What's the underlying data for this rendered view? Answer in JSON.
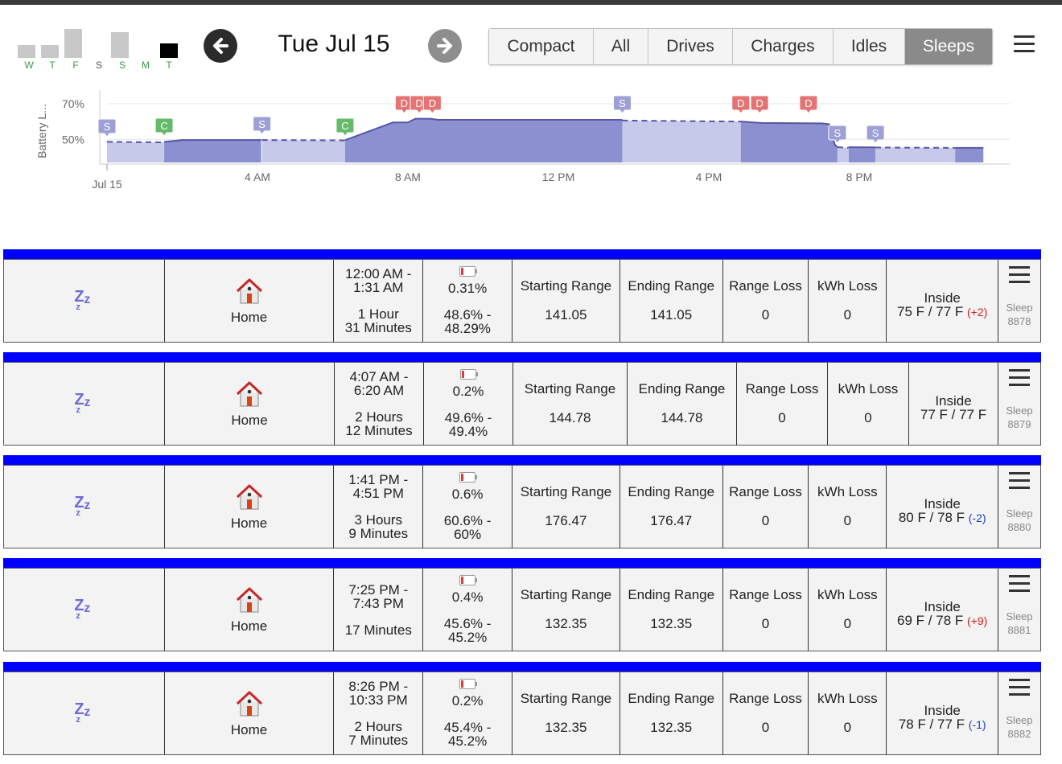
{
  "header": {
    "date_title": "Tue Jul 15",
    "week": [
      {
        "label": "W",
        "level": 0.45,
        "has_events": true
      },
      {
        "label": "T",
        "level": 0.45,
        "has_events": true
      },
      {
        "label": "F",
        "level": 1.0,
        "has_events": true
      },
      {
        "label": "S",
        "level": 0,
        "has_events": false
      },
      {
        "label": "S",
        "level": 0.9,
        "has_events": true
      },
      {
        "label": "M",
        "level": 0,
        "has_events": true
      },
      {
        "label": "T",
        "level": 0.55,
        "has_events": true,
        "today": true
      }
    ],
    "filters": [
      {
        "label": "Compact",
        "active": false
      },
      {
        "label": "All",
        "active": false
      },
      {
        "label": "Drives",
        "active": false
      },
      {
        "label": "Charges",
        "active": false
      },
      {
        "label": "Idles",
        "active": false
      },
      {
        "label": "Sleeps",
        "active": true
      }
    ],
    "icons": {
      "prev": "arrow-left-icon",
      "next": "arrow-right-icon",
      "menu": "hamburger-icon"
    }
  },
  "chart_data": {
    "type": "area",
    "ylabel": "Battery L...",
    "ytick_labels": [
      "70%",
      "50%"
    ],
    "yticks": [
      70,
      50
    ],
    "ylim": [
      37,
      75
    ],
    "xlim": [
      0,
      24
    ],
    "xtick_labels": [
      "Jul 15",
      "4 AM",
      "8 AM",
      "12 PM",
      "4 PM",
      "8 PM"
    ],
    "xticks": [
      0,
      4,
      8,
      12,
      16,
      20
    ],
    "colors": {
      "drive_fill": "#8c8fd0",
      "sleep_fill": "#c7c9eb",
      "line": "#5457a8",
      "drive_marker": "#e57373",
      "charge_marker": "#66bb6a",
      "sleep_marker": "#9da0d6"
    },
    "series": [
      {
        "segments": [
          {
            "kind": "sleep",
            "points": [
              [
                0,
                48.6
              ],
              [
                1.52,
                48.3
              ]
            ]
          },
          {
            "kind": "other",
            "points": [
              [
                1.52,
                48.6
              ],
              [
                2,
                49.6
              ],
              [
                4.1,
                49.6
              ]
            ]
          },
          {
            "kind": "sleep",
            "points": [
              [
                4.12,
                49.6
              ],
              [
                6.33,
                49.4
              ]
            ]
          },
          {
            "kind": "other",
            "points": [
              [
                6.33,
                49.5
              ],
              [
                7.6,
                59.5
              ],
              [
                8.0,
                59.5
              ],
              [
                8.2,
                61.6
              ],
              [
                8.6,
                61.6
              ],
              [
                8.8,
                61.0
              ],
              [
                13.7,
                61.0
              ]
            ]
          },
          {
            "kind": "sleep",
            "points": [
              [
                13.7,
                60.6
              ],
              [
                16.85,
                60.0
              ]
            ]
          },
          {
            "kind": "other",
            "points": [
              [
                16.85,
                60.0
              ],
              [
                17.4,
                59.2
              ],
              [
                19.0,
                59.0
              ],
              [
                19.2,
                58.5
              ],
              [
                19.35,
                47.0
              ],
              [
                19.42,
                45.6
              ]
            ]
          },
          {
            "kind": "sleep",
            "points": [
              [
                19.42,
                45.6
              ],
              [
                19.72,
                45.2
              ]
            ]
          },
          {
            "kind": "other",
            "points": [
              [
                19.72,
                45.6
              ],
              [
                20.43,
                45.5
              ]
            ]
          },
          {
            "kind": "sleep",
            "points": [
              [
                20.43,
                45.4
              ],
              [
                22.55,
                45.2
              ]
            ]
          },
          {
            "kind": "other",
            "points": [
              [
                22.55,
                45.2
              ],
              [
                23.3,
                45.2
              ]
            ]
          }
        ]
      }
    ],
    "markers": [
      {
        "type": "S",
        "x": 0.0,
        "y": 48.6
      },
      {
        "type": "C",
        "x": 1.52,
        "y": 49.0
      },
      {
        "type": "S",
        "x": 4.12,
        "y": 49.6
      },
      {
        "type": "C",
        "x": 6.33,
        "y": 49.6
      },
      {
        "type": "D",
        "x": 7.9,
        "y": 62
      },
      {
        "type": "D",
        "x": 8.3,
        "y": 62
      },
      {
        "type": "D",
        "x": 8.65,
        "y": 62
      },
      {
        "type": "S",
        "x": 13.7,
        "y": 61
      },
      {
        "type": "D",
        "x": 16.85,
        "y": 61
      },
      {
        "type": "D",
        "x": 17.35,
        "y": 61
      },
      {
        "type": "D",
        "x": 18.65,
        "y": 60
      },
      {
        "type": "S",
        "x": 19.42,
        "y": 46
      },
      {
        "type": "S",
        "x": 20.43,
        "y": 46
      }
    ]
  },
  "rows": [
    {
      "start": "12:00 AM -",
      "end": "1:31 AM",
      "dur1": "1 Hour",
      "dur2": "31 Minutes",
      "pct": "0.31%",
      "from": "48.6% -",
      "to": "48.29%",
      "start_range_label": "Starting Range",
      "start_range": "141.05",
      "end_range_label": "Ending Range",
      "end_range": "141.05",
      "range_loss_label": "Range Loss",
      "range_loss": "0",
      "kwh_loss_label": "kWh Loss",
      "kwh_loss": "0",
      "inside_label": "Inside",
      "temps": "75 F / 77 F",
      "delta": "(+2)",
      "delta_dir": "pos",
      "place": "Home",
      "type_label": "Sleep",
      "id": "8878"
    },
    {
      "start": "4:07 AM -",
      "end": "6:20 AM",
      "dur1": "2 Hours",
      "dur2": "12 Minutes",
      "pct": "0.2%",
      "from": "49.6% -",
      "to": "49.4%",
      "start_range_label": "Starting Range",
      "start_range": "144.78",
      "end_range_label": "Ending Range",
      "end_range": "144.78",
      "range_loss_label": "Range Loss",
      "range_loss": "0",
      "kwh_loss_label": "kWh Loss",
      "kwh_loss": "0",
      "inside_label": "Inside",
      "temps": "77 F / 77 F",
      "delta": "",
      "delta_dir": "",
      "place": "Home",
      "type_label": "Sleep",
      "id": "8879"
    },
    {
      "start": "1:41 PM -",
      "end": "4:51 PM",
      "dur1": "3 Hours",
      "dur2": "9 Minutes",
      "pct": "0.6%",
      "from": "60.6% -",
      "to": "60%",
      "start_range_label": "Starting Range",
      "start_range": "176.47",
      "end_range_label": "Ending Range",
      "end_range": "176.47",
      "range_loss_label": "Range Loss",
      "range_loss": "0",
      "kwh_loss_label": "kWh Loss",
      "kwh_loss": "0",
      "inside_label": "Inside",
      "temps": "80 F / 78 F",
      "delta": "(-2)",
      "delta_dir": "neg",
      "place": "Home",
      "type_label": "Sleep",
      "id": "8880"
    },
    {
      "start": "7:25 PM -",
      "end": "7:43 PM",
      "dur1": "17 Minutes",
      "dur2": "",
      "pct": "0.4%",
      "from": "45.6% -",
      "to": "45.2%",
      "start_range_label": "Starting Range",
      "start_range": "132.35",
      "end_range_label": "Ending Range",
      "end_range": "132.35",
      "range_loss_label": "Range Loss",
      "range_loss": "0",
      "kwh_loss_label": "kWh Loss",
      "kwh_loss": "0",
      "inside_label": "Inside",
      "temps": "69 F / 78 F",
      "delta": "(+9)",
      "delta_dir": "pos",
      "place": "Home",
      "type_label": "Sleep",
      "id": "8881"
    },
    {
      "start": "8:26 PM -",
      "end": "10:33 PM",
      "dur1": "2 Hours",
      "dur2": "7 Minutes",
      "pct": "0.2%",
      "from": "45.4% -",
      "to": "45.2%",
      "start_range_label": "Starting Range",
      "start_range": "132.35",
      "end_range_label": "Ending Range",
      "end_range": "132.35",
      "range_loss_label": "Range Loss",
      "range_loss": "0",
      "kwh_loss_label": "kWh Loss",
      "kwh_loss": "0",
      "inside_label": "Inside",
      "temps": "78 F / 77 F",
      "delta": "(-1)",
      "delta_dir": "neg",
      "place": "Home",
      "type_label": "Sleep",
      "id": "8882"
    }
  ]
}
